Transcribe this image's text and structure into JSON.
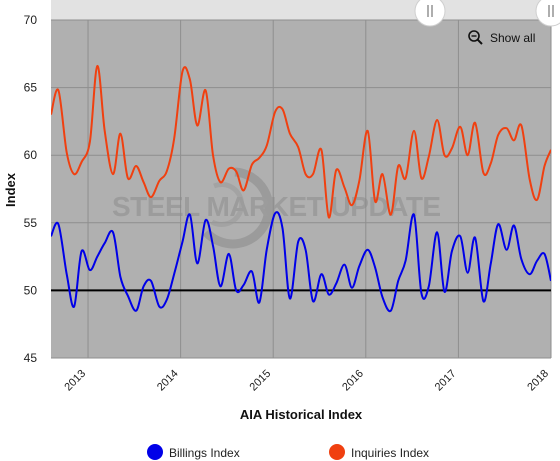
{
  "chart_data": {
    "type": "line",
    "title": "",
    "xlabel": "AIA Historical Index",
    "ylabel": "Index",
    "ylim": [
      45,
      70
    ],
    "y_ticks": [
      45,
      50,
      55,
      60,
      65,
      70
    ],
    "x_range": [
      2012.6,
      2018.0
    ],
    "x_ticks": [
      {
        "value": 2013,
        "label": "2013"
      },
      {
        "value": 2014,
        "label": "2014"
      },
      {
        "value": 2015,
        "label": "2015"
      },
      {
        "value": 2016,
        "label": "2016"
      },
      {
        "value": 2017,
        "label": "2017"
      },
      {
        "value": 2018,
        "label": "2018"
      }
    ],
    "reference_line": 50,
    "watermark": "STEEL MARKET UPDATE",
    "legend_position": "bottom",
    "grid": true,
    "series": [
      {
        "name": "Billings Index",
        "color": "#0000e8",
        "values": [
          [
            2012.6,
            54.0
          ],
          [
            2012.68,
            54.9
          ],
          [
            2012.77,
            51.2
          ],
          [
            2012.85,
            48.8
          ],
          [
            2012.93,
            52.9
          ],
          [
            2013.02,
            51.5
          ],
          [
            2013.1,
            52.5
          ],
          [
            2013.18,
            53.5
          ],
          [
            2013.27,
            54.3
          ],
          [
            2013.35,
            51.0
          ],
          [
            2013.43,
            49.6
          ],
          [
            2013.52,
            48.5
          ],
          [
            2013.6,
            50.3
          ],
          [
            2013.68,
            50.7
          ],
          [
            2013.77,
            48.8
          ],
          [
            2013.85,
            49.3
          ],
          [
            2013.93,
            51.2
          ],
          [
            2014.02,
            53.6
          ],
          [
            2014.1,
            55.6
          ],
          [
            2014.18,
            52.0
          ],
          [
            2014.27,
            55.2
          ],
          [
            2014.35,
            53.3
          ],
          [
            2014.43,
            50.3
          ],
          [
            2014.52,
            52.7
          ],
          [
            2014.6,
            50.0
          ],
          [
            2014.68,
            50.4
          ],
          [
            2014.77,
            51.4
          ],
          [
            2014.85,
            49.1
          ],
          [
            2014.93,
            53.0
          ],
          [
            2015.02,
            55.7
          ],
          [
            2015.1,
            54.6
          ],
          [
            2015.18,
            49.4
          ],
          [
            2015.27,
            53.6
          ],
          [
            2015.35,
            53.0
          ],
          [
            2015.43,
            49.2
          ],
          [
            2015.52,
            51.2
          ],
          [
            2015.6,
            49.7
          ],
          [
            2015.68,
            50.5
          ],
          [
            2015.77,
            51.9
          ],
          [
            2015.85,
            50.2
          ],
          [
            2015.93,
            51.8
          ],
          [
            2016.02,
            53.0
          ],
          [
            2016.1,
            51.7
          ],
          [
            2016.18,
            49.5
          ],
          [
            2016.27,
            48.5
          ],
          [
            2016.35,
            50.7
          ],
          [
            2016.43,
            52.2
          ],
          [
            2016.52,
            55.6
          ],
          [
            2016.6,
            49.8
          ],
          [
            2016.68,
            50.3
          ],
          [
            2016.77,
            54.3
          ],
          [
            2016.85,
            49.9
          ],
          [
            2016.93,
            52.9
          ],
          [
            2017.02,
            54.0
          ],
          [
            2017.1,
            51.3
          ],
          [
            2017.18,
            53.9
          ],
          [
            2017.27,
            49.2
          ],
          [
            2017.35,
            52.0
          ],
          [
            2017.43,
            54.9
          ],
          [
            2017.52,
            53.0
          ],
          [
            2017.6,
            54.8
          ],
          [
            2017.68,
            52.3
          ],
          [
            2017.77,
            51.2
          ],
          [
            2017.85,
            52.2
          ],
          [
            2017.93,
            52.7
          ],
          [
            2018.0,
            50.7
          ]
        ]
      },
      {
        "name": "Inquiries Index",
        "color": "#f04010",
        "values": [
          [
            2012.6,
            63.0
          ],
          [
            2012.68,
            64.8
          ],
          [
            2012.77,
            60.2
          ],
          [
            2012.85,
            58.6
          ],
          [
            2012.93,
            59.5
          ],
          [
            2013.02,
            61.0
          ],
          [
            2013.1,
            66.6
          ],
          [
            2013.18,
            61.8
          ],
          [
            2013.27,
            58.6
          ],
          [
            2013.35,
            61.6
          ],
          [
            2013.43,
            58.3
          ],
          [
            2013.52,
            59.2
          ],
          [
            2013.6,
            58.0
          ],
          [
            2013.68,
            56.9
          ],
          [
            2013.77,
            58.1
          ],
          [
            2013.85,
            58.8
          ],
          [
            2013.93,
            61.2
          ],
          [
            2014.02,
            66.2
          ],
          [
            2014.1,
            65.6
          ],
          [
            2014.18,
            62.2
          ],
          [
            2014.27,
            64.8
          ],
          [
            2014.35,
            60.0
          ],
          [
            2014.43,
            58.0
          ],
          [
            2014.52,
            59.0
          ],
          [
            2014.6,
            58.8
          ],
          [
            2014.68,
            57.4
          ],
          [
            2014.77,
            59.3
          ],
          [
            2014.85,
            59.8
          ],
          [
            2014.93,
            60.7
          ],
          [
            2015.02,
            63.2
          ],
          [
            2015.1,
            63.4
          ],
          [
            2015.18,
            61.6
          ],
          [
            2015.27,
            60.6
          ],
          [
            2015.35,
            58.6
          ],
          [
            2015.43,
            58.6
          ],
          [
            2015.52,
            60.4
          ],
          [
            2015.6,
            55.4
          ],
          [
            2015.68,
            58.9
          ],
          [
            2015.77,
            57.6
          ],
          [
            2015.85,
            56.3
          ],
          [
            2015.93,
            58.1
          ],
          [
            2016.02,
            61.8
          ],
          [
            2016.1,
            56.6
          ],
          [
            2016.18,
            58.6
          ],
          [
            2016.27,
            55.6
          ],
          [
            2016.35,
            59.2
          ],
          [
            2016.43,
            58.3
          ],
          [
            2016.52,
            61.8
          ],
          [
            2016.6,
            58.3
          ],
          [
            2016.68,
            59.9
          ],
          [
            2016.77,
            62.6
          ],
          [
            2016.85,
            60.0
          ],
          [
            2016.93,
            60.5
          ],
          [
            2017.02,
            62.1
          ],
          [
            2017.1,
            60.0
          ],
          [
            2017.18,
            62.4
          ],
          [
            2017.27,
            58.7
          ],
          [
            2017.35,
            59.4
          ],
          [
            2017.43,
            61.5
          ],
          [
            2017.52,
            62.0
          ],
          [
            2017.6,
            61.1
          ],
          [
            2017.68,
            62.2
          ],
          [
            2017.77,
            58.2
          ],
          [
            2017.85,
            56.7
          ],
          [
            2017.93,
            59.2
          ],
          [
            2018.0,
            60.4
          ]
        ]
      }
    ]
  },
  "controls": {
    "show_all_label": "Show all",
    "zoom_icon": "zoom-out-icon",
    "navigator_handle_icon": "drag-handle-icon"
  },
  "colors": {
    "plot_background": "#b0b0b0",
    "reference_line": "#000000"
  }
}
